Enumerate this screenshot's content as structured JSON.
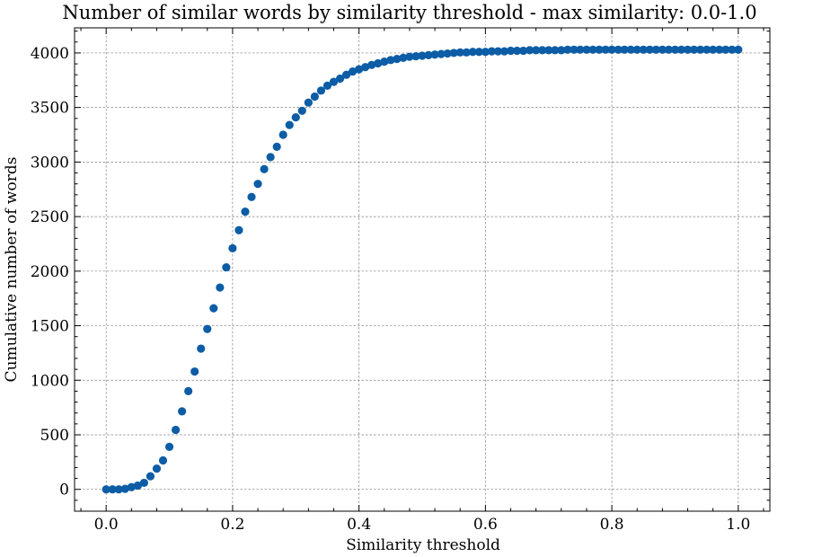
{
  "chart_data": {
    "type": "scatter",
    "title": "Number of similar words by similarity threshold - max similarity: 0.0-1.0",
    "xlabel": "Similarity threshold",
    "ylabel": "Cumulative number of words",
    "xlim": [
      -0.05,
      1.05
    ],
    "ylim": [
      -200,
      4230
    ],
    "xticks": [
      0.0,
      0.2,
      0.4,
      0.6,
      0.8,
      1.0
    ],
    "xtick_labels": [
      "0.0",
      "0.2",
      "0.4",
      "0.6",
      "0.8",
      "1.0"
    ],
    "yticks": [
      0,
      500,
      1000,
      1500,
      2000,
      2500,
      3000,
      3500,
      4000
    ],
    "ytick_labels": [
      "0",
      "500",
      "1000",
      "1500",
      "2000",
      "2500",
      "3000",
      "3500",
      "4000"
    ],
    "grid": true,
    "marker_color": "#0C5DA5",
    "series": [
      {
        "x": [
          0.0,
          0.01,
          0.02,
          0.03,
          0.04,
          0.05,
          0.06,
          0.07,
          0.08,
          0.09,
          0.1,
          0.11,
          0.12,
          0.13,
          0.14,
          0.15,
          0.16,
          0.17,
          0.18,
          0.19,
          0.2,
          0.21,
          0.22,
          0.23,
          0.24,
          0.25,
          0.26,
          0.27,
          0.28,
          0.29,
          0.3,
          0.31,
          0.32,
          0.33,
          0.34,
          0.35,
          0.36,
          0.37,
          0.38,
          0.39,
          0.4,
          0.41,
          0.42,
          0.43,
          0.44,
          0.45,
          0.46,
          0.47,
          0.48,
          0.49,
          0.5,
          0.51,
          0.52,
          0.53,
          0.54,
          0.55,
          0.56,
          0.57,
          0.58,
          0.59,
          0.6,
          0.61,
          0.62,
          0.63,
          0.64,
          0.65,
          0.66,
          0.67,
          0.68,
          0.69,
          0.7,
          0.71,
          0.72,
          0.73,
          0.74,
          0.75,
          0.76,
          0.77,
          0.78,
          0.79,
          0.8,
          0.81,
          0.82,
          0.83,
          0.84,
          0.85,
          0.86,
          0.87,
          0.88,
          0.89,
          0.9,
          0.91,
          0.92,
          0.93,
          0.94,
          0.95,
          0.96,
          0.97,
          0.98,
          0.99,
          1.0
        ],
        "y": [
          0,
          0,
          0,
          5,
          20,
          35,
          60,
          120,
          190,
          265,
          390,
          545,
          715,
          900,
          1080,
          1290,
          1470,
          1660,
          1850,
          2035,
          2210,
          2375,
          2545,
          2680,
          2800,
          2935,
          3045,
          3140,
          3250,
          3340,
          3410,
          3470,
          3545,
          3600,
          3655,
          3700,
          3735,
          3765,
          3800,
          3830,
          3850,
          3870,
          3890,
          3905,
          3920,
          3935,
          3945,
          3955,
          3965,
          3970,
          3975,
          3980,
          3985,
          3990,
          3995,
          4000,
          4005,
          4005,
          4010,
          4010,
          4010,
          4015,
          4015,
          4015,
          4020,
          4020,
          4020,
          4025,
          4025,
          4025,
          4025,
          4025,
          4025,
          4030,
          4030,
          4030,
          4030,
          4030,
          4030,
          4030,
          4030,
          4030,
          4030,
          4030,
          4030,
          4030,
          4030,
          4030,
          4030,
          4030,
          4030,
          4030,
          4030,
          4030,
          4030,
          4030,
          4030,
          4030,
          4030,
          4030,
          4030
        ]
      }
    ]
  }
}
